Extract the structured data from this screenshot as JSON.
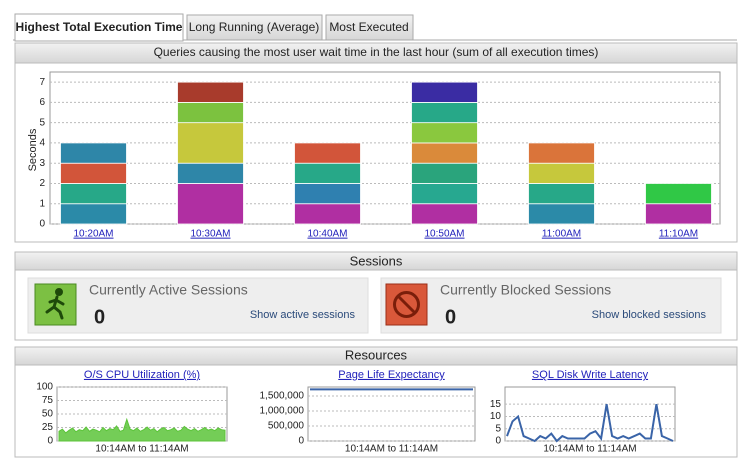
{
  "tabs": [
    "Highest Total Execution Time",
    "Long Running (Average)",
    "Most Executed"
  ],
  "sessions": {
    "title": "Sessions",
    "active": {
      "label": "Currently Active Sessions",
      "count": "0",
      "link": "Show active sessions"
    },
    "blocked": {
      "label": "Currently Blocked Sessions",
      "count": "0",
      "link": "Show blocked sessions"
    }
  },
  "resources": {
    "title": "Resources"
  },
  "chart_data": [
    {
      "type": "stacked-bar",
      "title": "Queries causing the most user wait time in the last hour (sum of all execution times)",
      "y_label": "Seconds",
      "categories": [
        "10:20AM",
        "10:30AM",
        "10:40AM",
        "10:50AM",
        "11:00AM",
        "11:10AM"
      ],
      "stacks": [
        [
          {
            "value": 1,
            "color": "#2b8aa8"
          },
          {
            "value": 1,
            "color": "#27a888"
          },
          {
            "value": 1,
            "color": "#d2553a"
          },
          {
            "value": 1,
            "color": "#2e86a8"
          }
        ],
        [
          {
            "value": 2,
            "color": "#b02fa2"
          },
          {
            "value": 1,
            "color": "#2e86a8"
          },
          {
            "value": 2,
            "color": "#c6c83c"
          },
          {
            "value": 1,
            "color": "#7cc23f"
          },
          {
            "value": 1,
            "color": "#a83b2c"
          }
        ],
        [
          {
            "value": 1,
            "color": "#b02fa2"
          },
          {
            "value": 1,
            "color": "#2f80b0"
          },
          {
            "value": 1,
            "color": "#27a888"
          },
          {
            "value": 1,
            "color": "#d2553a"
          }
        ],
        [
          {
            "value": 1,
            "color": "#b02fa2"
          },
          {
            "value": 1,
            "color": "#27a890"
          },
          {
            "value": 1,
            "color": "#2aa47c"
          },
          {
            "value": 1,
            "color": "#da8a3a"
          },
          {
            "value": 1,
            "color": "#8ac83e"
          },
          {
            "value": 1,
            "color": "#27a888"
          },
          {
            "value": 1,
            "color": "#3a2ca3"
          }
        ],
        [
          {
            "value": 1,
            "color": "#2b8aa8"
          },
          {
            "value": 1,
            "color": "#27a888"
          },
          {
            "value": 1,
            "color": "#c6c83c"
          },
          {
            "value": 1,
            "color": "#da743a"
          }
        ],
        [
          {
            "value": 1,
            "color": "#b02fa2"
          },
          {
            "value": 1,
            "color": "#30c846"
          }
        ]
      ],
      "ylim": [
        0,
        7.5
      ],
      "yticks": [
        0,
        1,
        2,
        3,
        4,
        5,
        6,
        7
      ],
      "grid": true
    },
    {
      "type": "area",
      "title": "O/S CPU Utilization (%)",
      "x_label": "10:14AM to 11:14AM",
      "color": "#5cc43a",
      "values": [
        18,
        22,
        15,
        20,
        24,
        17,
        21,
        19,
        26,
        18,
        22,
        20,
        17,
        25,
        19,
        23,
        21,
        28,
        18,
        20,
        40,
        22,
        19,
        24,
        18,
        21,
        26,
        20,
        23,
        17,
        22,
        25,
        19,
        21,
        24,
        18,
        20,
        27,
        22,
        19,
        23,
        18,
        21,
        25,
        20,
        22,
        19,
        24,
        21,
        20
      ],
      "ylim": [
        0,
        100
      ],
      "yticks": [
        0,
        25,
        50,
        75,
        100
      ],
      "grid": true
    },
    {
      "type": "line",
      "title": "Page Life Expectancy",
      "x_label": "10:14AM to 11:14AM",
      "color": "#3a64a8",
      "values": [
        1720000,
        1720000,
        1720000,
        1720000,
        1720000,
        1720000,
        1720000,
        1720000,
        1720000,
        1720000,
        1720000,
        1720000
      ],
      "ylim": [
        0,
        1800000
      ],
      "yticks": [
        0,
        {
          "value": 500000,
          "label": "500,000"
        },
        {
          "value": 1000000,
          "label": "1,000,000"
        },
        {
          "value": 1500000,
          "label": "1,500,000"
        }
      ],
      "grid": true
    },
    {
      "type": "line",
      "title": "SQL Disk Write Latency",
      "x_label": "10:14AM to 11:14AM",
      "color": "#3a64a8",
      "values": [
        2,
        8,
        10,
        2,
        1,
        0,
        2,
        1,
        3,
        0,
        2,
        1,
        1,
        1,
        1,
        3,
        4,
        1,
        15,
        2,
        1,
        2,
        1,
        2,
        3,
        1,
        1,
        15,
        2,
        1,
        0
      ],
      "ylim": [
        0,
        22
      ],
      "yticks": [
        0,
        5,
        10,
        15
      ],
      "grid": true
    }
  ]
}
